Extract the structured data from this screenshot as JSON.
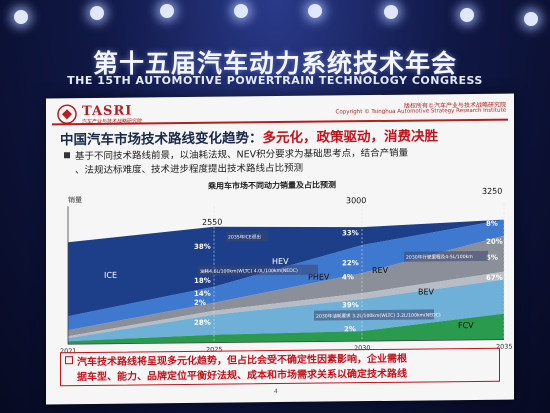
{
  "congress": {
    "title_cn": "第十五届汽车动力系统技术年会",
    "title_en": "THE 15TH AUTOMOTIVE POWERTRAIN TECHNOLOGY CONGRESS"
  },
  "slide": {
    "logo": "TASRI",
    "logo_sub": "汽车产业与技术战略研究院",
    "copyright_cn": "版权所有©汽车产业与技术战略研究院",
    "copyright_en": "Copyright © Tsinghua Automotive Strategy Research Institute",
    "title_prefix": "中国汽车市场技术路线变化趋势：",
    "title_highlight": "多元化，政策驱动，消费决胜",
    "bullet_line1": "基于不同技术路线前景，以油耗法规、NEV积分要求为基础思考点，结合产销量",
    "bullet_line2": "、法规达标难度、技术进步程度提出技术路线占比预测",
    "bottom_line1": "汽车技术路线将呈现多元化趋势，但占比会受不确定性因素影响，企业需根",
    "bottom_line2": "据车型、能力、品牌定位平衡好法规、成本和市场需求关系以确定技术路线",
    "page_number": "4"
  },
  "chart_data": {
    "type": "area",
    "title": "乘用车市场不同动力销量及占比预测",
    "ylabel": "销量",
    "x": [
      "2021",
      "2025",
      "2030",
      "2035"
    ],
    "totals": [
      null,
      2550,
      3000,
      3250
    ],
    "series": [
      {
        "name": "ICE",
        "pct_labels": {
          "2025": "38%",
          "2030": "",
          "2035": ""
        },
        "color": "#1d3f8a"
      },
      {
        "name": "HEV",
        "pct_labels": {
          "2025": "18%",
          "2030": "33%",
          "2035": "8%"
        },
        "color": "#3f78cf"
      },
      {
        "name": "PHEV",
        "pct_labels": {
          "2025": "14%",
          "2030": "22%",
          "2035": "20%"
        },
        "color": "#8a8f99"
      },
      {
        "name": "REV",
        "pct_labels": {
          "2025": "2%",
          "2030": "4%",
          "2035": "5%"
        },
        "color": "#b8bcc4"
      },
      {
        "name": "BEV",
        "pct_labels": {
          "2025": "28%",
          "2030": "39%",
          "2035": "67%"
        },
        "color": "#6fb0d8"
      },
      {
        "name": "FCV",
        "pct_labels": {
          "2025": "",
          "2030": "2%",
          "2035": ""
        },
        "color": "#2a9a4e"
      }
    ],
    "annotations": [
      "2035年ICE退出",
      "油耗4.6L/100km(WLTC)  4.0L/100km(NEDC)",
      "2030年行驶里程及4-5L/100km",
      "2030年油耗要求 3.2L/100km(WLTC)  3.2L/100km(NEDC)"
    ]
  }
}
